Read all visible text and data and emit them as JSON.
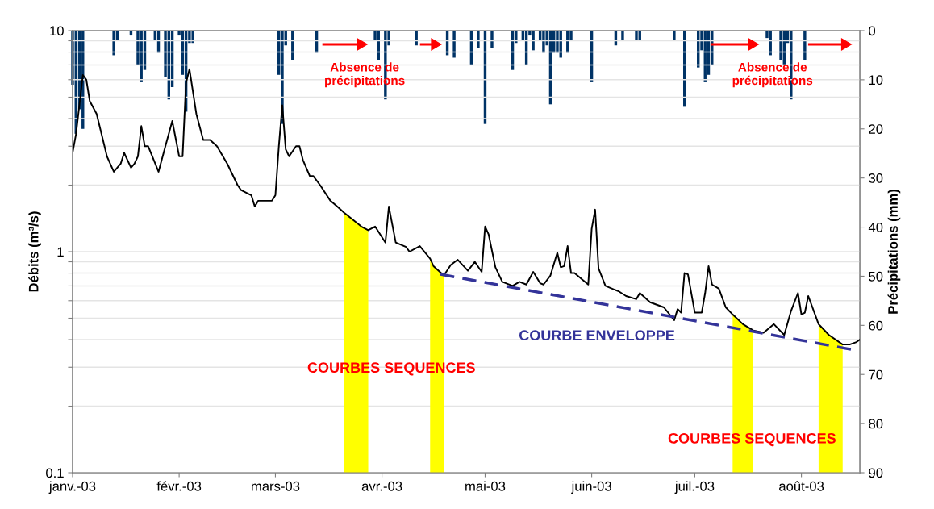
{
  "chart_data": {
    "type": "line",
    "ylabel": "Débits (m³/s)",
    "y2label": "Précipitations (mm)",
    "log": true,
    "grid": "y",
    "legend": false,
    "xlim": [
      "2003-01-01",
      "2003-08-18"
    ],
    "xticks": [
      {
        "value": "2003-01-01",
        "label": "janv.-03"
      },
      {
        "value": "2003-02-01",
        "label": "févr.-03"
      },
      {
        "value": "2003-03-01",
        "label": "mars-03"
      },
      {
        "value": "2003-04-01",
        "label": "avr.-03"
      },
      {
        "value": "2003-05-01",
        "label": "mai-03"
      },
      {
        "value": "2003-06-01",
        "label": "juin-03"
      },
      {
        "value": "2003-07-01",
        "label": "juil.-03"
      },
      {
        "value": "2003-08-01",
        "label": "août-03"
      }
    ],
    "ylim": [
      0.1,
      10
    ],
    "yticks": [
      0.1,
      {
        "value": 0.2,
        "label": null
      },
      {
        "value": 0.3,
        "label": null
      },
      {
        "value": 0.4,
        "label": null
      },
      {
        "value": 0.5,
        "label": null
      },
      {
        "value": 0.6,
        "label": null
      },
      {
        "value": 0.7,
        "label": null
      },
      {
        "value": 0.8,
        "label": null
      },
      {
        "value": 0.9,
        "label": null
      },
      1,
      {
        "value": 2,
        "label": null
      },
      {
        "value": 3,
        "label": null
      },
      {
        "value": 4,
        "label": null
      },
      {
        "value": 5,
        "label": null
      },
      {
        "value": 6,
        "label": null
      },
      {
        "value": 7,
        "label": null
      },
      {
        "value": 8,
        "label": null
      },
      {
        "value": 9,
        "label": null
      },
      10
    ],
    "y2lim": [
      90,
      0
    ],
    "y2ticks": [
      0,
      10,
      20,
      30,
      40,
      50,
      60,
      70,
      80,
      90
    ],
    "series": [
      {
        "type": "bar",
        "axis": "y2",
        "color": "#003366",
        "x": [
          "2003-01-01",
          "2003-01-02",
          "2003-01-03",
          "2003-01-04",
          "2003-01-13",
          "2003-01-14",
          "2003-01-18",
          "2003-01-20",
          "2003-01-21",
          "2003-01-22",
          "2003-01-25",
          "2003-01-26",
          "2003-01-28",
          "2003-01-29",
          "2003-01-30",
          "2003-02-01",
          "2003-02-02",
          "2003-02-03",
          "2003-02-04",
          "2003-02-05",
          "2003-03-02",
          "2003-03-03",
          "2003-03-04",
          "2003-03-06",
          "2003-03-13",
          "2003-03-30",
          "2003-03-31",
          "2003-04-02",
          "2003-04-03",
          "2003-04-11",
          "2003-04-20",
          "2003-04-22",
          "2003-04-27",
          "2003-04-29",
          "2003-05-01",
          "2003-05-03",
          "2003-05-09",
          "2003-05-10",
          "2003-05-12",
          "2003-05-13",
          "2003-05-14",
          "2003-05-15",
          "2003-05-17",
          "2003-05-18",
          "2003-05-19",
          "2003-05-20",
          "2003-05-21",
          "2003-05-22",
          "2003-05-23",
          "2003-05-25",
          "2003-05-26",
          "2003-06-01",
          "2003-06-08",
          "2003-06-10",
          "2003-06-14",
          "2003-06-15",
          "2003-06-25",
          "2003-06-28",
          "2003-07-02",
          "2003-07-03",
          "2003-07-04",
          "2003-07-05",
          "2003-07-06",
          "2003-07-22",
          "2003-07-23",
          "2003-07-26",
          "2003-07-27",
          "2003-07-28",
          "2003-07-29",
          "2003-08-02"
        ],
        "values": [
          11,
          21,
          16,
          20,
          5,
          2,
          1,
          7,
          10.5,
          8,
          2,
          4.5,
          9.5,
          14,
          11.5,
          1,
          9,
          16.5,
          2.5,
          2.5,
          9,
          19,
          3,
          6,
          4.5,
          2,
          6,
          14,
          3,
          3,
          5,
          5.5,
          7,
          3.5,
          19,
          3.5,
          8,
          2.5,
          2,
          7,
          1,
          4,
          2,
          4.5,
          3,
          15,
          4.5,
          4.5,
          5.5,
          4.5,
          2,
          10.5,
          3,
          2,
          2,
          2,
          2,
          15.5,
          7.5,
          4,
          10.5,
          9,
          7,
          1.5,
          5,
          6,
          7,
          2.5,
          14,
          6
        ]
      },
      {
        "type": "area",
        "color": "#ffff00",
        "x": [
          "2003-03-21",
          "2003-03-26",
          "2003-03-28"
        ],
        "values": [
          1.5,
          1.3,
          1.25
        ]
      },
      {
        "type": "area",
        "color": "#ffff00",
        "x": [
          "2003-04-15",
          "2003-04-16",
          "2003-04-19"
        ],
        "values": [
          0.93,
          0.86,
          0.78
        ]
      },
      {
        "type": "area",
        "color": "#ffff00",
        "x": [
          "2003-07-12",
          "2003-07-15",
          "2003-07-18"
        ],
        "values": [
          0.52,
          0.47,
          0.44
        ]
      },
      {
        "type": "area",
        "color": "#ffff00",
        "x": [
          "2003-08-06",
          "2003-08-09",
          "2003-08-13"
        ],
        "values": [
          0.47,
          0.42,
          0.38
        ]
      },
      {
        "color": "#000000",
        "line_style": "solid",
        "x": [
          "2003-01-01",
          "2003-01-02",
          "2003-01-04",
          "2003-01-05",
          "2003-01-06",
          "2003-01-08",
          "2003-01-11",
          "2003-01-13",
          "2003-01-15",
          "2003-01-16",
          "2003-01-18",
          "2003-01-19",
          "2003-01-20",
          "2003-01-21",
          "2003-01-22",
          "2003-01-23",
          "2003-01-26",
          "2003-01-28",
          "2003-01-30",
          "2003-02-01",
          "2003-02-02",
          "2003-02-03",
          "2003-02-04",
          "2003-02-06",
          "2003-02-08",
          "2003-02-10",
          "2003-02-12",
          "2003-02-15",
          "2003-02-18",
          "2003-02-19",
          "2003-02-22",
          "2003-02-23",
          "2003-02-24",
          "2003-02-26",
          "2003-02-28",
          "2003-03-01",
          "2003-03-02",
          "2003-03-03",
          "2003-03-04",
          "2003-03-05",
          "2003-03-07",
          "2003-03-08",
          "2003-03-09",
          "2003-03-11",
          "2003-03-12",
          "2003-03-14",
          "2003-03-17",
          "2003-03-19",
          "2003-03-21",
          "2003-03-26",
          "2003-03-28",
          "2003-03-30",
          "2003-04-02",
          "2003-04-03",
          "2003-04-05",
          "2003-04-08",
          "2003-04-09",
          "2003-04-12",
          "2003-04-15",
          "2003-04-16",
          "2003-04-19",
          "2003-04-21",
          "2003-04-23",
          "2003-04-26",
          "2003-04-28",
          "2003-04-30",
          "2003-05-01",
          "2003-05-02",
          "2003-05-04",
          "2003-05-06",
          "2003-05-09",
          "2003-05-11",
          "2003-05-13",
          "2003-05-15",
          "2003-05-17",
          "2003-05-18",
          "2003-05-20",
          "2003-05-22",
          "2003-05-23",
          "2003-05-24",
          "2003-05-25",
          "2003-05-26",
          "2003-05-27",
          "2003-05-31",
          "2003-06-01",
          "2003-06-02",
          "2003-06-03",
          "2003-06-05",
          "2003-06-09",
          "2003-06-11",
          "2003-06-14",
          "2003-06-15",
          "2003-06-18",
          "2003-06-22",
          "2003-06-25",
          "2003-06-26",
          "2003-06-27",
          "2003-06-28",
          "2003-06-29",
          "2003-07-01",
          "2003-07-03",
          "2003-07-04",
          "2003-07-05",
          "2003-07-06",
          "2003-07-08",
          "2003-07-10",
          "2003-07-12",
          "2003-07-15",
          "2003-07-18",
          "2003-07-21",
          "2003-07-24",
          "2003-07-27",
          "2003-07-29",
          "2003-07-31",
          "2003-08-01",
          "2003-08-02",
          "2003-08-03",
          "2003-08-06",
          "2003-08-09",
          "2003-08-13",
          "2003-08-15",
          "2003-08-17",
          "2003-08-18"
        ],
        "values": [
          2.8,
          3.4,
          6.3,
          6.0,
          4.8,
          4.2,
          2.7,
          2.3,
          2.5,
          2.8,
          2.4,
          2.5,
          2.7,
          3.7,
          3.0,
          3.0,
          2.3,
          3.0,
          3.9,
          2.7,
          2.7,
          5.8,
          6.7,
          4.2,
          3.2,
          3.2,
          3.0,
          2.5,
          2.0,
          1.9,
          1.8,
          1.6,
          1.7,
          1.7,
          1.7,
          1.8,
          3.0,
          4.6,
          2.9,
          2.7,
          3.0,
          3.0,
          2.6,
          2.2,
          2.2,
          2.0,
          1.7,
          1.6,
          1.5,
          1.3,
          1.25,
          1.3,
          1.1,
          1.6,
          1.1,
          1.05,
          1.0,
          1.06,
          0.93,
          0.86,
          0.78,
          0.87,
          0.92,
          0.82,
          0.9,
          0.81,
          1.3,
          1.2,
          0.85,
          0.73,
          0.7,
          0.73,
          0.71,
          0.81,
          0.72,
          0.71,
          0.78,
          0.99,
          0.85,
          0.86,
          1.06,
          0.8,
          0.8,
          0.71,
          1.27,
          1.55,
          0.84,
          0.7,
          0.66,
          0.63,
          0.61,
          0.65,
          0.59,
          0.56,
          0.49,
          0.55,
          0.53,
          0.8,
          0.79,
          0.53,
          0.53,
          0.65,
          0.86,
          0.71,
          0.68,
          0.56,
          0.52,
          0.47,
          0.44,
          0.43,
          0.47,
          0.42,
          0.54,
          0.65,
          0.52,
          0.53,
          0.63,
          0.47,
          0.42,
          0.38,
          0.38,
          0.39,
          0.4
        ]
      },
      {
        "color": "#333399",
        "line_style": "dashed",
        "x": [
          "2003-04-18",
          "2003-08-16"
        ],
        "values": [
          0.79,
          0.36
        ]
      }
    ],
    "annotations": [
      "Absence de\nprécipitations",
      "Absence de\nprécipitations",
      "COURBES SEQUENCES",
      "COURBES SEQUENCES",
      "COURBE ENVELOPPE"
    ]
  }
}
